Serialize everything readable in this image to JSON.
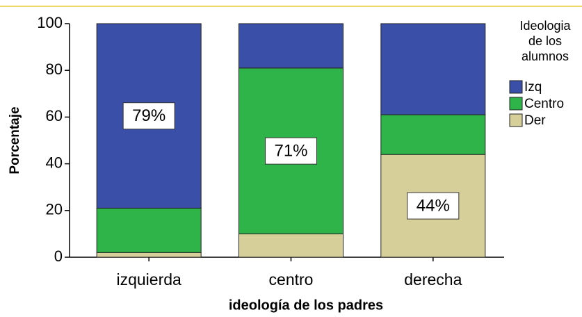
{
  "chart_data": {
    "type": "stacked_bar",
    "x_label": "ideología de los padres",
    "y_label": "Porcentaje",
    "categories": [
      "izquierda",
      "centro",
      "derecha"
    ],
    "series": [
      {
        "name": "Izq",
        "color": "#3a4fa8",
        "values": [
          79,
          19,
          39
        ],
        "value_labels": [
          "79%",
          null,
          null
        ]
      },
      {
        "name": "Centro",
        "color": "#2fb44a",
        "values": [
          19,
          71,
          17
        ],
        "value_labels": [
          null,
          "71%",
          null
        ]
      },
      {
        "name": "Der",
        "color": "#d6cf9a",
        "values": [
          2,
          10,
          44
        ],
        "value_labels": [
          null,
          null,
          "44%"
        ]
      }
    ],
    "legend_title": [
      "Ideologia",
      "de los",
      "alumnos"
    ],
    "ylim": [
      0,
      100
    ],
    "yticks": [
      0,
      20,
      40,
      60,
      80,
      100
    ]
  }
}
